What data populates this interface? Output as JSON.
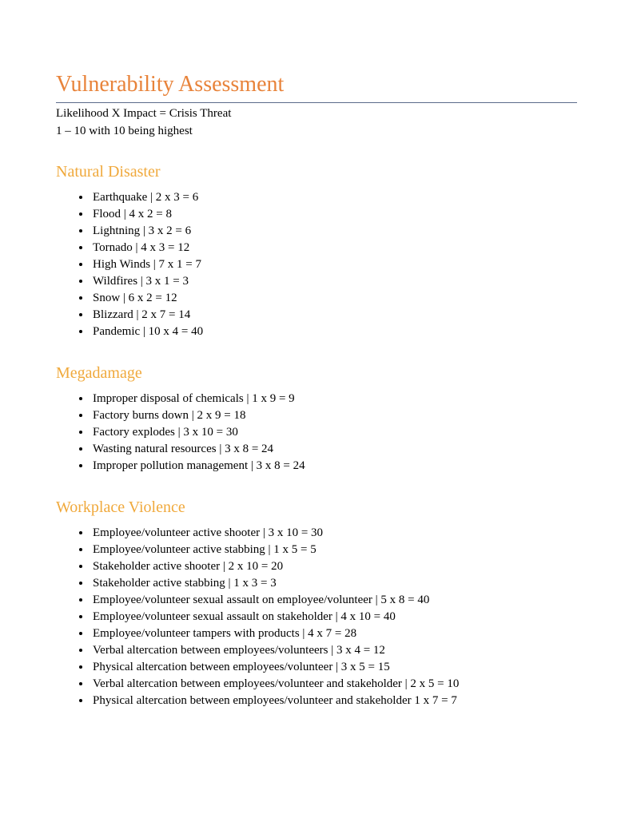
{
  "title": "Vulnerability Assessment",
  "subtitle_line1": "Likelihood X Impact = Crisis Threat",
  "subtitle_line2": "1 – 10 with 10 being highest",
  "colors": {
    "main_title": "#e8833a",
    "section_title": "#f0a93c",
    "hr": "#5b6b8a",
    "text": "#000000",
    "background": "#ffffff"
  },
  "typography": {
    "main_title_fontsize": 28,
    "section_title_fontsize": 20,
    "body_fontsize": 15,
    "font_family": "Georgia, serif"
  },
  "sections": [
    {
      "heading": "Natural Disaster",
      "items": [
        "Earthquake | 2 x 3 = 6",
        "Flood | 4 x 2 = 8",
        "Lightning | 3 x 2 = 6",
        "Tornado | 4 x 3 = 12",
        "High Winds | 7 x 1 = 7",
        "Wildfires | 3 x 1 = 3",
        "Snow | 6 x 2 = 12",
        "Blizzard | 2 x 7 = 14",
        "Pandemic | 10 x 4 = 40"
      ]
    },
    {
      "heading": "Megadamage",
      "items": [
        "Improper disposal of chemicals | 1 x 9 = 9",
        "Factory burns down | 2 x 9 = 18",
        "Factory explodes | 3 x 10 = 30",
        "Wasting natural resources | 3 x 8 = 24",
        "Improper pollution management | 3 x 8 = 24"
      ]
    },
    {
      "heading": "Workplace Violence",
      "items": [
        "Employee/volunteer active shooter | 3 x 10 = 30",
        "Employee/volunteer active stabbing | 1 x 5 = 5",
        "Stakeholder active shooter | 2 x 10 = 20",
        "Stakeholder active stabbing | 1 x 3 = 3",
        "Employee/volunteer sexual assault on employee/volunteer | 5 x 8 = 40",
        "Employee/volunteer sexual assault on stakeholder | 4 x 10 = 40",
        "Employee/volunteer tampers with products | 4 x 7 = 28",
        "Verbal altercation between employees/volunteers | 3 x 4 = 12",
        "Physical altercation between employees/volunteer | 3 x 5 = 15",
        "Verbal altercation between employees/volunteer and stakeholder | 2 x 5 = 10",
        "Physical altercation between employees/volunteer and stakeholder 1 x 7 = 7"
      ]
    }
  ]
}
